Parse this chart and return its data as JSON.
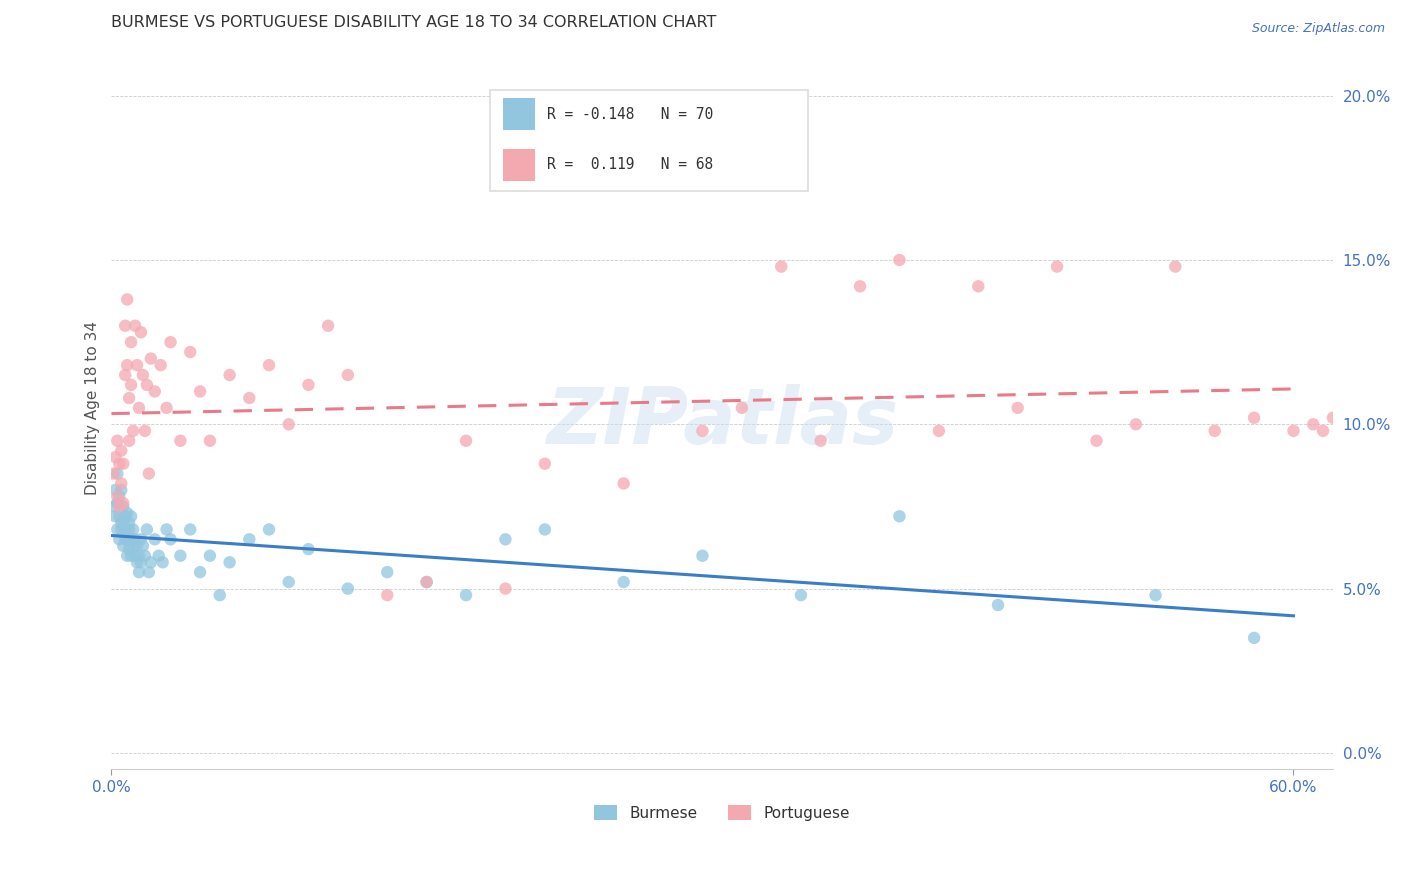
{
  "title": "BURMESE VS PORTUGUESE DISABILITY AGE 18 TO 34 CORRELATION CHART",
  "source": "Source: ZipAtlas.com",
  "ylabel": "Disability Age 18 to 34",
  "xlim": [
    0.0,
    0.62
  ],
  "ylim": [
    -0.005,
    0.215
  ],
  "yticks": [
    0.0,
    0.05,
    0.1,
    0.15,
    0.2
  ],
  "ytick_labels": [
    "0.0%",
    "5.0%",
    "10.0%",
    "15.0%",
    "20.0%"
  ],
  "xticks": [
    0.0,
    0.6
  ],
  "xtick_labels": [
    "0.0%",
    "60.0%"
  ],
  "burmese_color": "#92c5de",
  "portuguese_color": "#f4a9b0",
  "burmese_R": -0.148,
  "burmese_N": 70,
  "portuguese_R": 0.119,
  "portuguese_N": 68,
  "burmese_line_color": "#3a7dc9",
  "portuguese_line_color": "#e87a8a",
  "watermark": "ZIPatlas",
  "burmese_x": [
    0.001,
    0.002,
    0.002,
    0.003,
    0.003,
    0.003,
    0.004,
    0.004,
    0.004,
    0.005,
    0.005,
    0.005,
    0.006,
    0.006,
    0.006,
    0.007,
    0.007,
    0.007,
    0.008,
    0.008,
    0.008,
    0.009,
    0.009,
    0.009,
    0.01,
    0.01,
    0.01,
    0.011,
    0.011,
    0.012,
    0.012,
    0.013,
    0.013,
    0.014,
    0.014,
    0.015,
    0.015,
    0.016,
    0.017,
    0.018,
    0.019,
    0.02,
    0.022,
    0.024,
    0.026,
    0.028,
    0.03,
    0.035,
    0.04,
    0.045,
    0.05,
    0.055,
    0.06,
    0.07,
    0.08,
    0.09,
    0.1,
    0.12,
    0.14,
    0.16,
    0.18,
    0.2,
    0.22,
    0.26,
    0.3,
    0.35,
    0.4,
    0.45,
    0.53,
    0.58
  ],
  "burmese_y": [
    0.075,
    0.08,
    0.072,
    0.085,
    0.076,
    0.068,
    0.078,
    0.065,
    0.072,
    0.08,
    0.07,
    0.068,
    0.075,
    0.063,
    0.07,
    0.072,
    0.065,
    0.068,
    0.06,
    0.073,
    0.065,
    0.068,
    0.062,
    0.07,
    0.065,
    0.06,
    0.072,
    0.063,
    0.068,
    0.06,
    0.065,
    0.058,
    0.063,
    0.06,
    0.055,
    0.065,
    0.058,
    0.063,
    0.06,
    0.068,
    0.055,
    0.058,
    0.065,
    0.06,
    0.058,
    0.068,
    0.065,
    0.06,
    0.068,
    0.055,
    0.06,
    0.048,
    0.058,
    0.065,
    0.068,
    0.052,
    0.062,
    0.05,
    0.055,
    0.052,
    0.048,
    0.065,
    0.068,
    0.052,
    0.06,
    0.048,
    0.072,
    0.045,
    0.048,
    0.035
  ],
  "portuguese_x": [
    0.001,
    0.002,
    0.003,
    0.003,
    0.004,
    0.004,
    0.005,
    0.005,
    0.006,
    0.006,
    0.007,
    0.007,
    0.008,
    0.008,
    0.009,
    0.009,
    0.01,
    0.01,
    0.011,
    0.012,
    0.013,
    0.014,
    0.015,
    0.016,
    0.017,
    0.018,
    0.019,
    0.02,
    0.022,
    0.025,
    0.028,
    0.03,
    0.035,
    0.04,
    0.045,
    0.05,
    0.06,
    0.07,
    0.08,
    0.09,
    0.1,
    0.11,
    0.12,
    0.14,
    0.16,
    0.18,
    0.2,
    0.22,
    0.26,
    0.3,
    0.32,
    0.34,
    0.36,
    0.38,
    0.4,
    0.42,
    0.44,
    0.46,
    0.48,
    0.5,
    0.52,
    0.54,
    0.56,
    0.58,
    0.6,
    0.61,
    0.615,
    0.62
  ],
  "portuguese_y": [
    0.085,
    0.09,
    0.095,
    0.078,
    0.088,
    0.075,
    0.092,
    0.082,
    0.088,
    0.076,
    0.13,
    0.115,
    0.138,
    0.118,
    0.095,
    0.108,
    0.125,
    0.112,
    0.098,
    0.13,
    0.118,
    0.105,
    0.128,
    0.115,
    0.098,
    0.112,
    0.085,
    0.12,
    0.11,
    0.118,
    0.105,
    0.125,
    0.095,
    0.122,
    0.11,
    0.095,
    0.115,
    0.108,
    0.118,
    0.1,
    0.112,
    0.13,
    0.115,
    0.048,
    0.052,
    0.095,
    0.05,
    0.088,
    0.082,
    0.098,
    0.105,
    0.148,
    0.095,
    0.142,
    0.15,
    0.098,
    0.142,
    0.105,
    0.148,
    0.095,
    0.1,
    0.148,
    0.098,
    0.102,
    0.098,
    0.1,
    0.098,
    0.102
  ]
}
